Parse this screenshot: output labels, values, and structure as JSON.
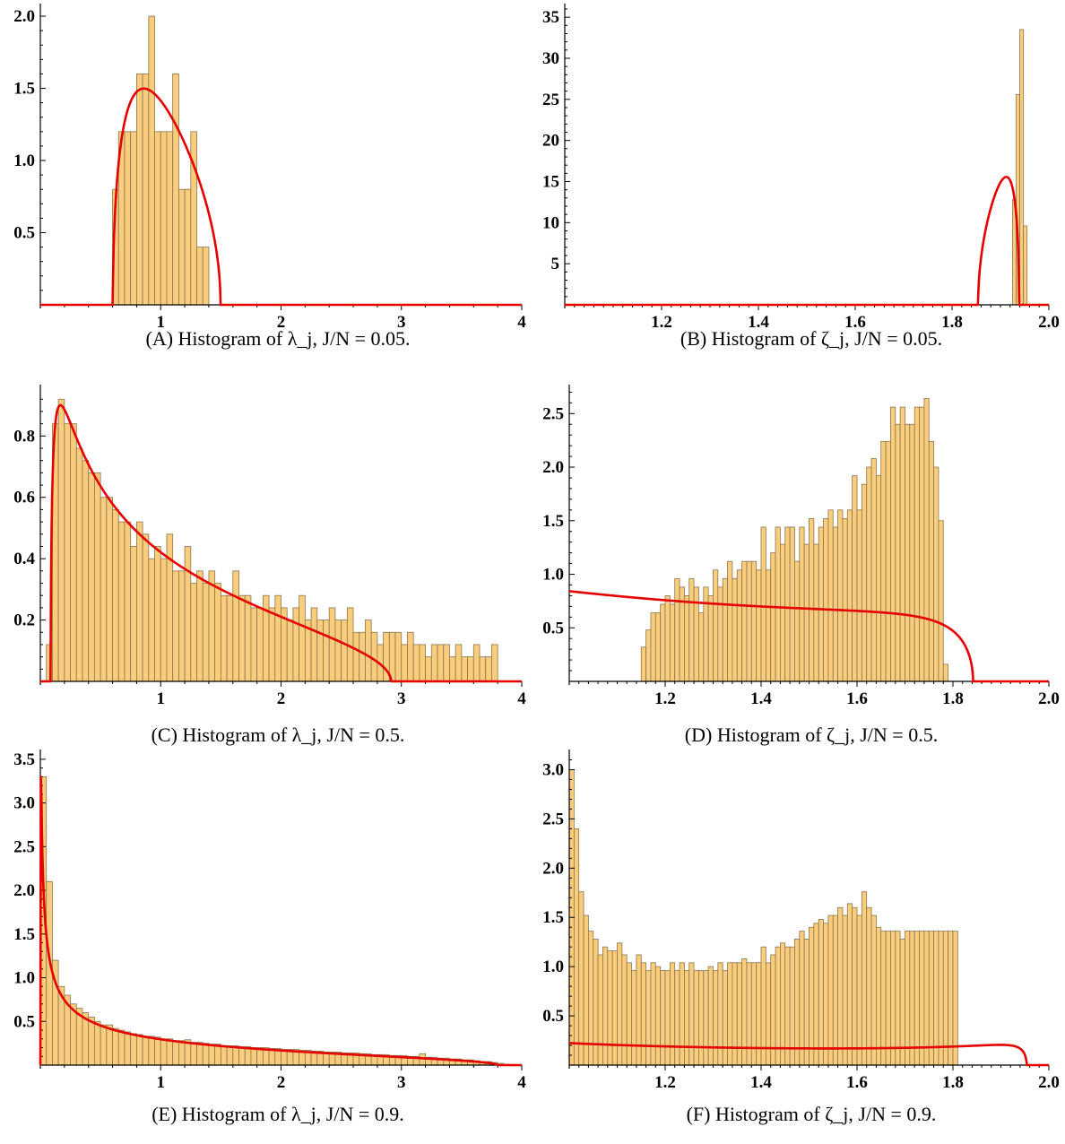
{
  "chart_data": [
    {
      "id": "a",
      "type": "bar",
      "caption_label": "(A)",
      "caption_text": "Histogram of λ_j, J/N = 0.05.",
      "xlim": [
        0,
        4
      ],
      "ylim": [
        0,
        2.05
      ],
      "xticks": [
        1,
        2,
        3,
        4
      ],
      "yticks": [
        0.5,
        1.0,
        1.5,
        2.0
      ],
      "xtick_labels": [
        "1",
        "2",
        "3",
        "4"
      ],
      "ytick_labels": [
        "0.5",
        "1.0",
        "1.5",
        "2.0"
      ],
      "bins": {
        "start": 0.6,
        "width": 0.05,
        "values": [
          0.8,
          1.2,
          1.2,
          1.2,
          1.6,
          1.6,
          2.0,
          1.2,
          1.2,
          1.2,
          1.6,
          0.8,
          0.8,
          1.2,
          0.4,
          0.4,
          0,
          0,
          0,
          0
        ]
      },
      "curve": {
        "kind": "mp",
        "c": 0.05,
        "scale": 1.0
      }
    },
    {
      "id": "b",
      "type": "bar",
      "caption_label": "(B)",
      "caption_text": "Histogram of ζ_j, J/N = 0.05.",
      "xlim": [
        1.0,
        2.0
      ],
      "ylim": [
        0,
        36
      ],
      "xticks": [
        1.2,
        1.4,
        1.6,
        1.8,
        2.0
      ],
      "yticks": [
        5,
        10,
        15,
        20,
        25,
        30,
        35
      ],
      "xtick_labels": [
        "1.2",
        "1.4",
        "1.6",
        "1.8",
        "2.0"
      ],
      "ytick_labels": [
        "5",
        "10",
        "15",
        "20",
        "25",
        "30",
        "35"
      ],
      "bins": {
        "start": 1.925,
        "width": 0.0075,
        "values": [
          12.8,
          25.6,
          33.5,
          9.6
        ]
      },
      "curve": {
        "kind": "zeta",
        "c": 0.05,
        "scale": 1.0
      }
    },
    {
      "id": "c",
      "type": "bar",
      "caption_label": "(C)",
      "caption_text": "Histogram of λ_j, J/N = 0.5.",
      "xlim": [
        0,
        4
      ],
      "ylim": [
        0,
        0.95
      ],
      "xticks": [
        1,
        2,
        3,
        4
      ],
      "yticks": [
        0.2,
        0.4,
        0.6,
        0.8
      ],
      "xtick_labels": [
        "1",
        "2",
        "3",
        "4"
      ],
      "ytick_labels": [
        "0.2",
        "0.4",
        "0.6",
        "0.8"
      ],
      "bins": {
        "start": 0.05,
        "width": 0.05,
        "values": [
          0.12,
          0.84,
          0.92,
          0.84,
          0.84,
          0.76,
          0.72,
          0.68,
          0.68,
          0.6,
          0.6,
          0.56,
          0.52,
          0.52,
          0.44,
          0.52,
          0.48,
          0.4,
          0.44,
          0.4,
          0.48,
          0.36,
          0.36,
          0.44,
          0.32,
          0.36,
          0.32,
          0.36,
          0.32,
          0.28,
          0.28,
          0.36,
          0.28,
          0.28,
          0.24,
          0.24,
          0.28,
          0.24,
          0.28,
          0.24,
          0.2,
          0.24,
          0.28,
          0.2,
          0.24,
          0.2,
          0.2,
          0.24,
          0.2,
          0.2,
          0.24,
          0.16,
          0.16,
          0.2,
          0.16,
          0.12,
          0.16,
          0.16,
          0.16,
          0.12,
          0.16,
          0.12,
          0.12,
          0.08,
          0.12,
          0.12,
          0.12,
          0.08,
          0.12,
          0.08,
          0.08,
          0.12,
          0.08,
          0.08,
          0.12,
          0,
          0,
          0
        ]
      },
      "curve": {
        "kind": "mp",
        "c": 0.5,
        "scale": 1.0
      }
    },
    {
      "id": "d",
      "type": "bar",
      "caption_label": "(D)",
      "caption_text": "Histogram of ζ_j, J/N = 0.5.",
      "xlim": [
        1.0,
        2.0
      ],
      "ylim": [
        0,
        2.72
      ],
      "xticks": [
        1.2,
        1.4,
        1.6,
        1.8,
        2.0
      ],
      "yticks": [
        0.5,
        1.0,
        1.5,
        2.0,
        2.5
      ],
      "xtick_labels": [
        "1.2",
        "1.4",
        "1.6",
        "1.8",
        "2.0"
      ],
      "ytick_labels": [
        "0.5",
        "1.0",
        "1.5",
        "2.0",
        "2.5"
      ],
      "bins": {
        "start": 1.15,
        "width": 0.01,
        "values": [
          0.32,
          0.48,
          0.64,
          0.64,
          0.72,
          0.8,
          0.72,
          0.96,
          0.88,
          0.8,
          0.96,
          0.88,
          0.64,
          0.88,
          0.8,
          1.04,
          0.88,
          0.96,
          1.12,
          0.96,
          1.04,
          1.12,
          1.12,
          1.12,
          1.04,
          1.44,
          1.04,
          1.2,
          1.44,
          1.28,
          1.44,
          1.44,
          1.12,
          1.44,
          1.28,
          1.52,
          1.28,
          1.44,
          1.52,
          1.6,
          1.44,
          1.6,
          1.52,
          1.6,
          1.92,
          1.6,
          1.84,
          2.0,
          2.08,
          1.92,
          2.24,
          2.24,
          2.56,
          2.4,
          2.56,
          2.4,
          2.4,
          2.56,
          2.56,
          2.64,
          2.24,
          2.0,
          1.5,
          0.16
        ]
      },
      "curve": {
        "kind": "zeta",
        "c": 0.5,
        "scale": 1.0
      }
    },
    {
      "id": "e",
      "type": "bar",
      "caption_label": "(E)",
      "caption_text": "Histogram of λ_j, J/N = 0.9.",
      "xlim": [
        0,
        4
      ],
      "ylim": [
        0,
        3.55
      ],
      "xticks": [
        1,
        2,
        3,
        4
      ],
      "yticks": [
        0.5,
        1.0,
        1.5,
        2.0,
        2.5,
        3.0,
        3.5
      ],
      "xtick_labels": [
        "1",
        "2",
        "3",
        "4"
      ],
      "ytick_labels": [
        "0.5",
        "1.0",
        "1.5",
        "2.0",
        "2.5",
        "3.0",
        "3.5"
      ],
      "bins": {
        "start": 0.0,
        "width": 0.05,
        "values": [
          3.3,
          2.1,
          1.2,
          0.9,
          0.8,
          0.7,
          0.65,
          0.6,
          0.55,
          0.5,
          0.46,
          0.46,
          0.42,
          0.4,
          0.38,
          0.36,
          0.35,
          0.33,
          0.33,
          0.32,
          0.3,
          0.3,
          0.28,
          0.28,
          0.29,
          0.26,
          0.26,
          0.25,
          0.24,
          0.24,
          0.22,
          0.22,
          0.22,
          0.21,
          0.21,
          0.2,
          0.2,
          0.2,
          0.19,
          0.19,
          0.18,
          0.18,
          0.18,
          0.17,
          0.17,
          0.16,
          0.16,
          0.15,
          0.15,
          0.15,
          0.14,
          0.14,
          0.14,
          0.13,
          0.13,
          0.12,
          0.12,
          0.12,
          0.11,
          0.11,
          0.11,
          0.1,
          0.1,
          0.13,
          0.09,
          0.09,
          0.08,
          0.08,
          0.07,
          0.07,
          0.06,
          0.06,
          0.05,
          0.04,
          0.04,
          0.03,
          0.02,
          0.01,
          0,
          0
        ]
      },
      "curve": {
        "kind": "mp",
        "c": 0.9,
        "scale": 1.0
      }
    },
    {
      "id": "f",
      "type": "bar",
      "caption_label": "(F)",
      "caption_text": "Histogram of ζ_j, J/N = 0.9.",
      "xlim": [
        1.0,
        2.0
      ],
      "ylim": [
        0,
        3.15
      ],
      "xticks": [
        1.2,
        1.4,
        1.6,
        1.8,
        2.0
      ],
      "yticks": [
        0.5,
        1.0,
        1.5,
        2.0,
        2.5,
        3.0
      ],
      "xtick_labels": [
        "1.2",
        "1.4",
        "1.6",
        "1.8",
        "2.0"
      ],
      "ytick_labels": [
        "0.5",
        "1.0",
        "1.5",
        "2.0",
        "2.5",
        "3.0"
      ],
      "bins": {
        "start": 1.0,
        "width": 0.01,
        "values": [
          3.0,
          2.4,
          1.76,
          1.52,
          1.36,
          1.28,
          1.12,
          1.2,
          1.16,
          1.16,
          1.24,
          1.12,
          1.04,
          0.96,
          1.12,
          1.04,
          0.96,
          1.04,
          1.0,
          0.96,
          0.96,
          1.04,
          0.96,
          1.04,
          0.96,
          1.04,
          0.96,
          0.96,
          0.96,
          1.0,
          0.96,
          1.04,
          0.96,
          1.04,
          1.04,
          1.04,
          1.08,
          1.04,
          1.04,
          1.04,
          1.2,
          1.04,
          1.12,
          1.2,
          1.24,
          1.2,
          1.2,
          1.28,
          1.36,
          1.28,
          1.4,
          1.44,
          1.48,
          1.44,
          1.52,
          1.52,
          1.6,
          1.52,
          1.64,
          1.6,
          1.52,
          1.76,
          1.6,
          1.52,
          1.4,
          1.36,
          1.36,
          1.36,
          1.36,
          1.28,
          1.36,
          1.36,
          1.36,
          1.36,
          1.36,
          1.36,
          1.36,
          1.36,
          1.36,
          1.36,
          1.36
        ]
      },
      "curve": {
        "kind": "zeta",
        "c": 0.9,
        "scale": 1.0
      }
    }
  ]
}
